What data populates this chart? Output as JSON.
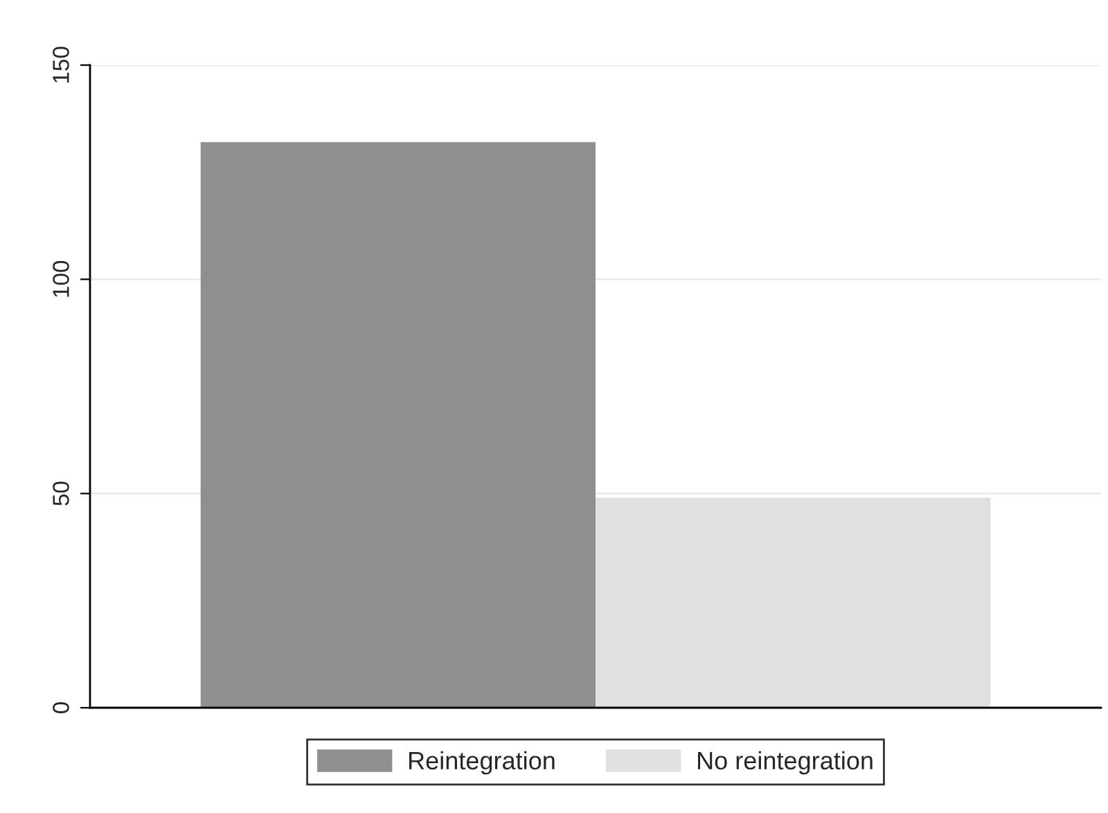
{
  "chart_data": {
    "type": "bar",
    "categories": [
      null
    ],
    "series": [
      {
        "name": "Reintegration",
        "color": "#8f8f8f",
        "values": [
          132
        ]
      },
      {
        "name": "No reintegration",
        "color": "#e0e0e0",
        "values": [
          49
        ]
      }
    ],
    "ylim": [
      0,
      150
    ],
    "yticks": [
      0,
      50,
      100,
      150
    ],
    "grid": "y",
    "legend": "bottom"
  }
}
